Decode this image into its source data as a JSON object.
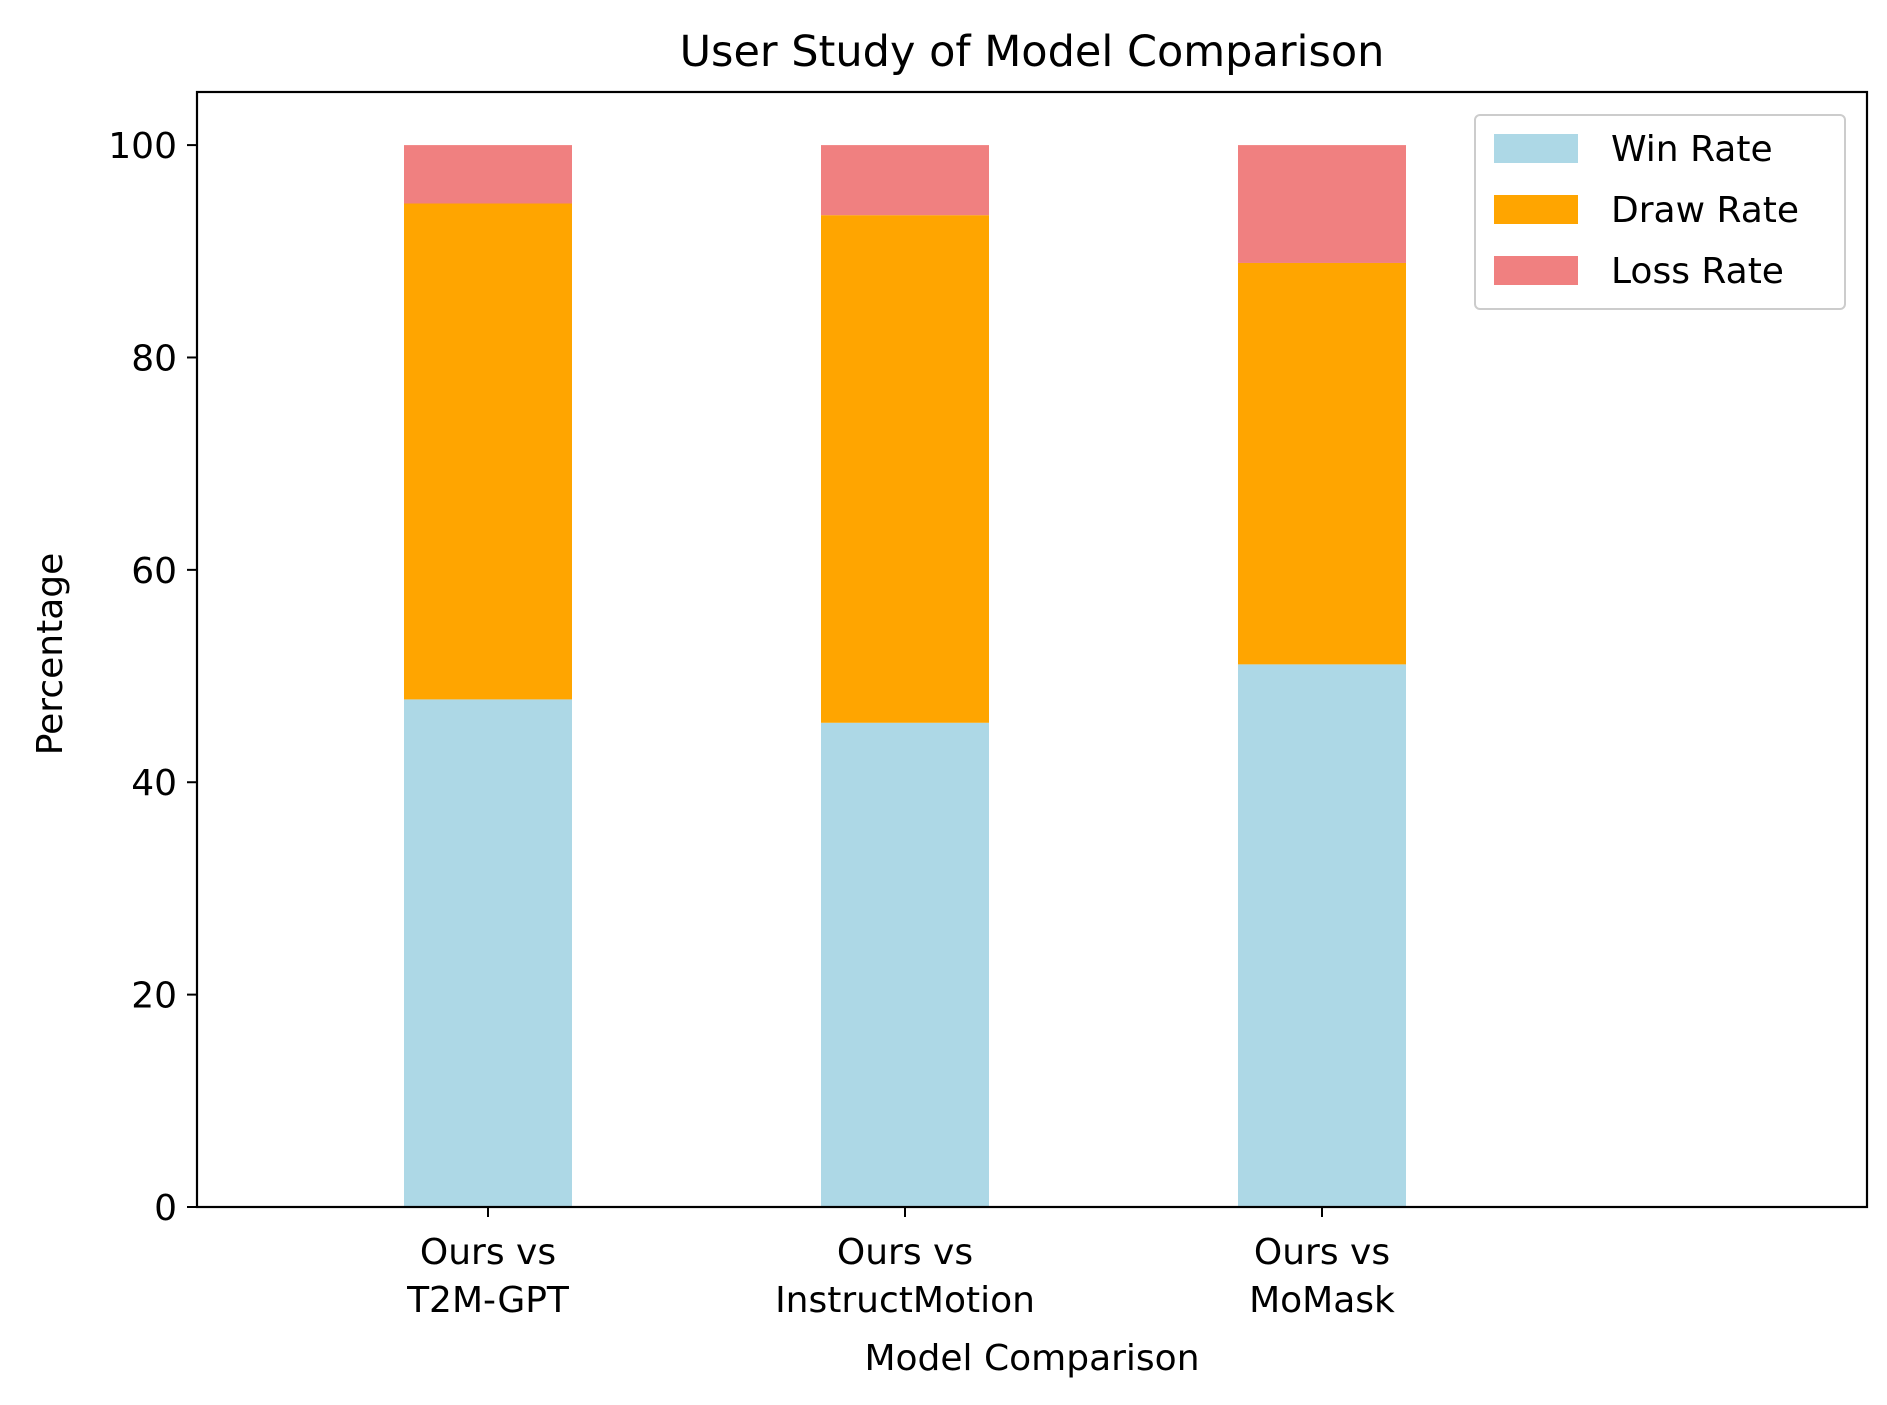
{
  "chart_data": {
    "type": "bar",
    "stacked": true,
    "title": "User Study of Model Comparison",
    "xlabel": "Model Comparison",
    "ylabel": "Percentage",
    "ylim": [
      0,
      105
    ],
    "yticks": [
      0,
      20,
      40,
      60,
      80,
      100
    ],
    "grid": false,
    "legend_position": "top-right",
    "categories": [
      [
        "Ours vs",
        "T2M-GPT"
      ],
      [
        "Ours vs",
        "InstructMotion"
      ],
      [
        "Ours vs",
        "MoMask"
      ]
    ],
    "series": [
      {
        "name": "Win Rate",
        "color": "#add8e6",
        "values": [
          47.8,
          45.6,
          51.1
        ]
      },
      {
        "name": "Draw Rate",
        "color": "#ffa500",
        "values": [
          46.7,
          47.8,
          37.8
        ]
      },
      {
        "name": "Loss Rate",
        "color": "#f08080",
        "values": [
          5.5,
          6.6,
          11.1
        ]
      }
    ]
  }
}
